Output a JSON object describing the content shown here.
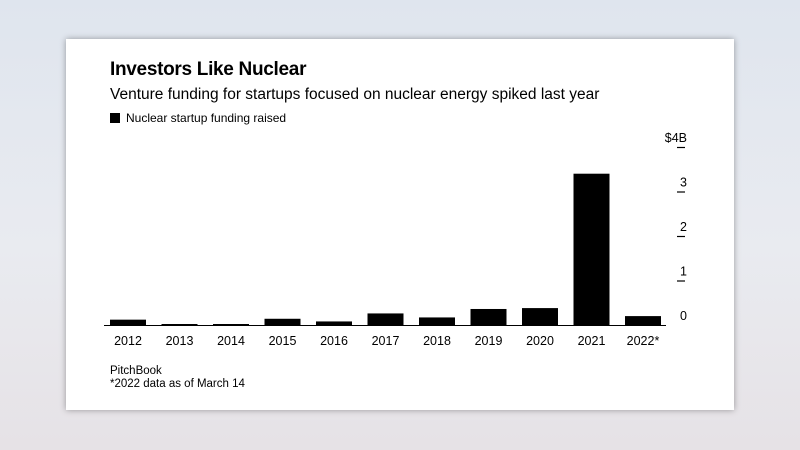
{
  "chart_data": {
    "type": "bar",
    "title": "Investors Like Nuclear",
    "subtitle": "Venture funding for startups focused on nuclear energy spiked last year",
    "categories": [
      "2012",
      "2013",
      "2014",
      "2015",
      "2016",
      "2017",
      "2018",
      "2019",
      "2020",
      "2021",
      "2022*"
    ],
    "series": [
      {
        "name": "Nuclear startup funding raised",
        "values": [
          0.12,
          0.02,
          0.02,
          0.14,
          0.08,
          0.26,
          0.17,
          0.36,
          0.38,
          3.4,
          0.2
        ],
        "color": "#000000"
      }
    ],
    "yticks": [
      {
        "value": 0,
        "label": "0"
      },
      {
        "value": 1,
        "label": "1"
      },
      {
        "value": 2,
        "label": "2"
      },
      {
        "value": 3,
        "label": "3"
      },
      {
        "value": 4,
        "label": "$4B"
      }
    ],
    "ylim": [
      0,
      4
    ],
    "y_axis_side": "right",
    "grid": false,
    "legend_position": "top-left",
    "source": "PitchBook",
    "note": "*2022 data as of March 14"
  }
}
